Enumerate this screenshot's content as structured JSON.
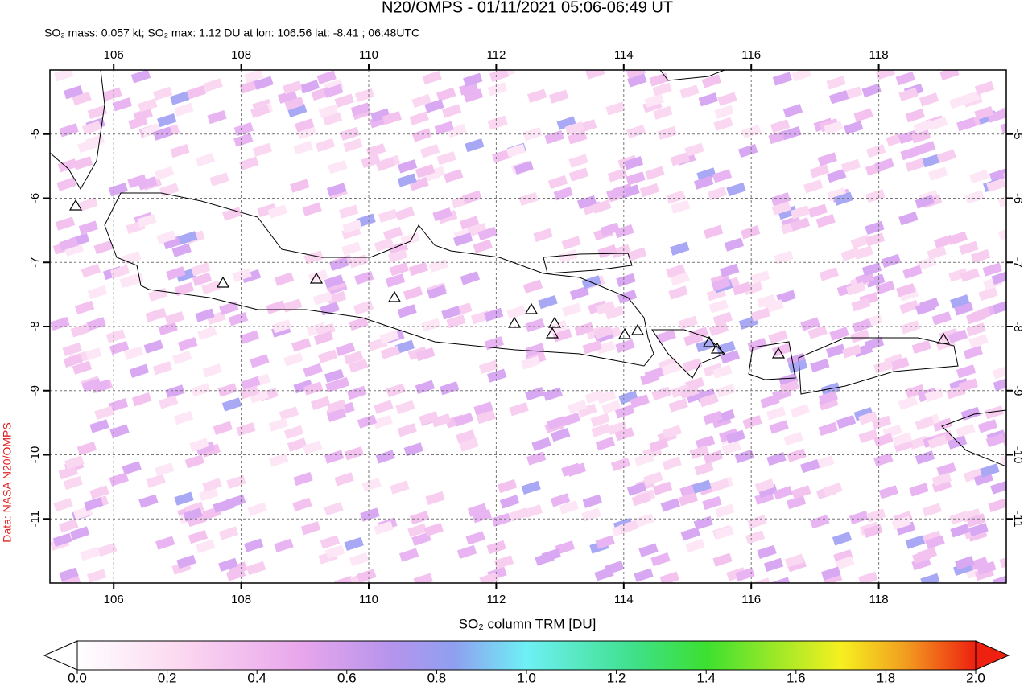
{
  "title": "N20/OMPS - 01/11/2021 05:06-06:49 UT",
  "subtitle": "SO₂ mass: 0.057 kt; SO₂ max: 1.12 DU at lon: 106.56 lat: -8.41 ; 06:48UTC",
  "credit": "Data: NASA N20/OMPS",
  "map": {
    "xlim": [
      105,
      120
    ],
    "ylim": [
      -12,
      -4
    ],
    "xticks": [
      106,
      108,
      110,
      112,
      114,
      116,
      118
    ],
    "yticks": [
      -5,
      -6,
      -7,
      -8,
      -9,
      -10,
      -11
    ]
  },
  "colorbar": {
    "label": "SO₂ column TRM [DU]",
    "lim": [
      0,
      2
    ],
    "ticks": [
      {
        "value": 0,
        "label": "0.0"
      },
      {
        "value": 0.2,
        "label": "0.2"
      },
      {
        "value": 0.4,
        "label": "0.4"
      },
      {
        "value": 0.6,
        "label": "0.6"
      },
      {
        "value": 0.8,
        "label": "0.8"
      },
      {
        "value": 1,
        "label": "1.0"
      },
      {
        "value": 1.2,
        "label": "1.2"
      },
      {
        "value": 1.4,
        "label": "1.4"
      },
      {
        "value": 1.6,
        "label": "1.6"
      },
      {
        "value": 1.8,
        "label": "1.8"
      },
      {
        "value": 2,
        "label": "2.0"
      }
    ]
  }
}
